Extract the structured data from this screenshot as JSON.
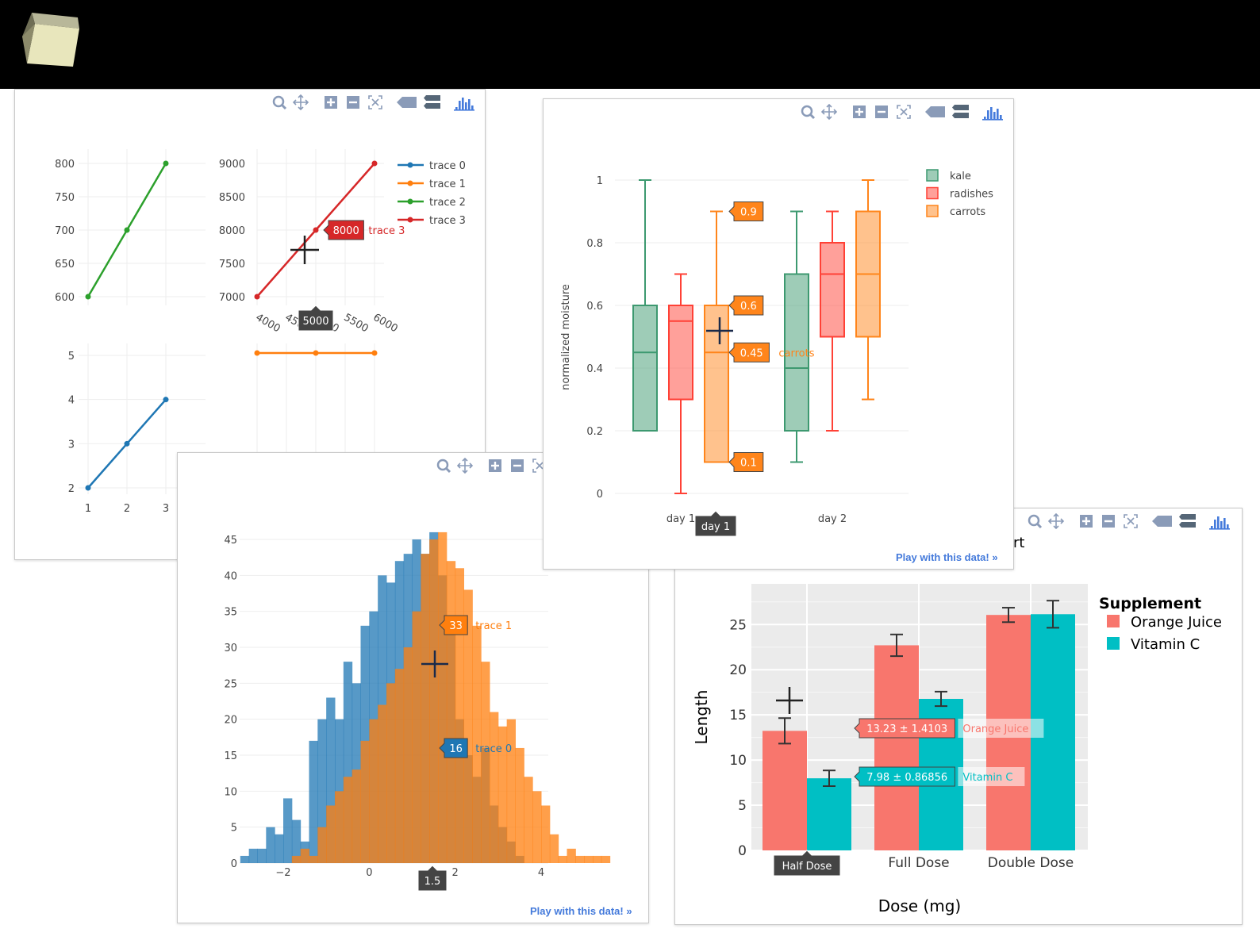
{
  "page": {
    "play_link": "Play with this data! »"
  },
  "colors": {
    "blue": "#1f77b4",
    "orange": "#ff7f0e",
    "green": "#2ca02c",
    "red": "#d62728",
    "kale": "#3d9970",
    "radishes": "#ff4136",
    "carrots": "#ff851b",
    "oj": "#f8766d",
    "vc": "#00bfc4",
    "link": "#447adb"
  },
  "modebar_icons": [
    "zoom-icon",
    "pan-icon",
    "zoom-in-icon",
    "zoom-out-icon",
    "autoscale-icon",
    "hover-closest-icon",
    "hover-compare-icon",
    "plotly-logo-icon"
  ],
  "chart_data": [
    {
      "type": "line",
      "subplots": [
        {
          "series": [
            {
              "name": "trace 2",
              "x": [
                1,
                2,
                3
              ],
              "values": [
                600,
                700,
                800
              ]
            }
          ],
          "ylim": [
            580,
            810
          ],
          "yticks": [
            600,
            650,
            700,
            750,
            800
          ]
        },
        {
          "series": [
            {
              "name": "trace 3",
              "x": [
                4000,
                5000,
                6000
              ],
              "values": [
                7000,
                8000,
                9000
              ]
            }
          ],
          "xlim": [
            4000,
            6000
          ],
          "xticks": [
            "4000",
            "4500",
            "5000",
            "5500",
            "6000"
          ],
          "ylim": [
            6950,
            9050
          ],
          "yticks": [
            7000,
            7500,
            8000,
            8500,
            9000
          ]
        },
        {
          "series": [
            {
              "name": "trace 0",
              "x": [
                1,
                2,
                3
              ],
              "values": [
                2,
                3,
                4
              ]
            }
          ],
          "xticks": [
            "1",
            "2",
            "3"
          ],
          "ylim": [
            1.9,
            5.3
          ],
          "yticks": [
            2,
            3,
            4,
            5
          ]
        },
        {
          "series": [
            {
              "name": "trace 1",
              "x": [
                4000,
                5000,
                6000
              ],
              "values": [
                5,
                5,
                5
              ]
            }
          ]
        }
      ],
      "legend": [
        "trace 0",
        "trace 1",
        "trace 2",
        "trace 3"
      ],
      "hover": {
        "value": "8000",
        "name": "trace 3",
        "x": "5000"
      }
    },
    {
      "type": "bar",
      "subtype": "overlaid histogram",
      "xlim": [
        -3,
        4.1
      ],
      "ylim": [
        0,
        46
      ],
      "xticks": [
        "−2",
        "0",
        "2",
        "4"
      ],
      "yticks": [
        0,
        5,
        10,
        15,
        20,
        25,
        30,
        35,
        40,
        45
      ],
      "bin_width": 0.2,
      "series": [
        {
          "name": "trace 0",
          "start": -3.0,
          "values": [
            1,
            2,
            2,
            5,
            4,
            9,
            6,
            3,
            17,
            20,
            23,
            20,
            28,
            25,
            33,
            35,
            40,
            39,
            42,
            43,
            45,
            43,
            46,
            40,
            33,
            20,
            15,
            12,
            16,
            8,
            5,
            3,
            1
          ]
        },
        {
          "name": "trace 1",
          "start": -1.8,
          "values": [
            1,
            2,
            1,
            5,
            8,
            10,
            12,
            13,
            17,
            20,
            22,
            25,
            27,
            30,
            35,
            43,
            45,
            46,
            42,
            41,
            38,
            33,
            28,
            21,
            19,
            20,
            16,
            12,
            10,
            8,
            4,
            1,
            2,
            1,
            1,
            1,
            1
          ]
        }
      ],
      "hover": [
        {
          "value": "33",
          "name": "trace 1"
        },
        {
          "value": "16",
          "name": "trace 0"
        },
        {
          "x": "1.5"
        }
      ]
    },
    {
      "type": "box",
      "categories": [
        "day 1",
        "day 2"
      ],
      "ylabel": "normalized moisture",
      "ylim": [
        0,
        1
      ],
      "yticks": [
        "0",
        "0.2",
        "0.4",
        "0.6",
        "0.8",
        "1"
      ],
      "series": [
        {
          "name": "kale",
          "boxes": [
            {
              "min": 0.2,
              "q1": 0.2,
              "median": 0.45,
              "q3": 0.6,
              "max": 1.0
            },
            {
              "min": 0.1,
              "q1": 0.2,
              "median": 0.4,
              "q3": 0.7,
              "max": 0.9
            }
          ]
        },
        {
          "name": "radishes",
          "boxes": [
            {
              "min": 0.0,
              "q1": 0.3,
              "median": 0.55,
              "q3": 0.6,
              "max": 0.7
            },
            {
              "min": 0.2,
              "q1": 0.5,
              "median": 0.7,
              "q3": 0.8,
              "max": 0.9
            }
          ]
        },
        {
          "name": "carrots",
          "boxes": [
            {
              "min": 0.1,
              "q1": 0.1,
              "median": 0.45,
              "q3": 0.6,
              "max": 0.9
            },
            {
              "min": 0.3,
              "q1": 0.5,
              "median": 0.7,
              "q3": 0.9,
              "max": 1.0
            }
          ]
        }
      ],
      "hover": {
        "labels": [
          "0.9",
          "0.6",
          "0.45",
          "0.1"
        ],
        "name": "carrots",
        "x": "day 1"
      }
    },
    {
      "type": "bar",
      "title_fragment": "rt",
      "xlabel": "Dose (mg)",
      "ylabel": "Length",
      "categories": [
        "Half Dose",
        "Full Dose",
        "Double Dose"
      ],
      "ylim": [
        0,
        29.5
      ],
      "yticks": [
        "0",
        "5",
        "10",
        "15",
        "20",
        "25"
      ],
      "legend_title": "Supplement",
      "series": [
        {
          "name": "Orange Juice",
          "values": [
            13.23,
            22.7,
            26.06
          ],
          "errors": [
            1.4103,
            1.2,
            0.8
          ]
        },
        {
          "name": "Vitamin C",
          "values": [
            7.98,
            16.77,
            26.14
          ],
          "errors": [
            0.86856,
            0.8,
            1.5
          ]
        }
      ],
      "hover": [
        {
          "value": "13.23 ± 1.4103",
          "name": "Orange Juice"
        },
        {
          "value": "7.98 ± 0.86856",
          "name": "Vitamin C"
        },
        {
          "x": "Half Dose"
        }
      ]
    }
  ]
}
